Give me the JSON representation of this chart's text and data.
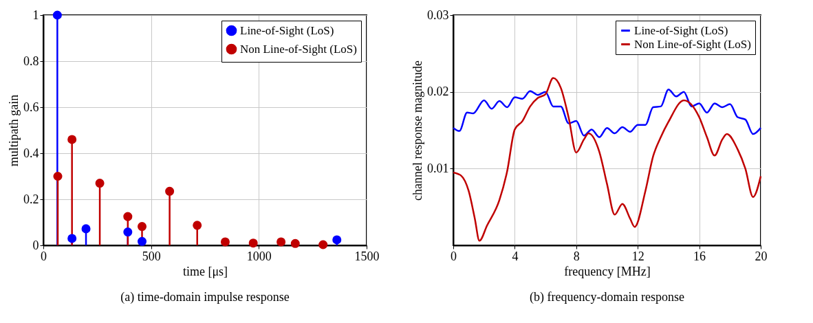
{
  "chart_data": [
    {
      "type": "lollipop",
      "title": "(a)  time-domain impulse response",
      "xlabel": "time [μs]",
      "ylabel": "multipath gain",
      "xlim": [
        0,
        1500
      ],
      "xticks": [
        0,
        500,
        1000,
        1500
      ],
      "ylim": [
        0,
        1
      ],
      "yticks": [
        0,
        0.2,
        0.4,
        0.6,
        0.8,
        1
      ],
      "grid": true,
      "legend": "top right",
      "marker": "circle",
      "series": [
        {
          "name": "Line-of-Sight (LoS)",
          "color": "#0000ff",
          "x": [
            65,
            133,
            198,
            392,
            458,
            1169,
            1362
          ],
          "values": [
            1.0,
            0.03,
            0.072,
            0.058,
            0.017,
            null,
            0.024
          ]
        },
        {
          "name": "Non Line-of-Sight (LoS)",
          "color": "#c00000",
          "x": [
            67,
            133,
            262,
            392,
            458,
            586,
            714,
            844,
            974,
            1103,
            1169,
            1298
          ],
          "values": [
            0.3,
            0.46,
            0.27,
            0.125,
            0.082,
            0.235,
            0.087,
            0.015,
            0.01,
            0.015,
            0.008,
            0.003
          ]
        }
      ]
    },
    {
      "type": "line",
      "title": "(b)  frequency-domain response",
      "xlabel": "frequency [MHz]",
      "ylabel": "channel response magnitude",
      "xlim": [
        0,
        20
      ],
      "xticks": [
        0,
        4,
        8,
        12,
        16,
        20
      ],
      "ylim": [
        0,
        0.03
      ],
      "yticks": [
        0.01,
        0.02,
        0.03
      ],
      "grid": true,
      "legend": "top right",
      "marker": "none",
      "line_style": "solid",
      "series": [
        {
          "name": "Line-of-Sight (LoS)",
          "color": "#0000ff",
          "x": [
            0,
            0.4,
            0.9,
            1.3,
            2.0,
            2.5,
            3.0,
            3.5,
            4.0,
            4.5,
            5.0,
            5.5,
            6.0,
            6.5,
            7.0,
            7.5,
            8.0,
            8.5,
            9.0,
            9.5,
            10.0,
            10.5,
            11.0,
            11.5,
            12.0,
            12.5,
            13.0,
            13.5,
            14.0,
            14.5,
            15.0,
            15.5,
            16.0,
            16.5,
            17.0,
            17.5,
            18.0,
            18.5,
            19.0,
            19.5,
            20.0
          ],
          "values": [
            0.0153,
            0.0149,
            0.0173,
            0.0172,
            0.0189,
            0.0178,
            0.0188,
            0.018,
            0.0193,
            0.0191,
            0.0201,
            0.0196,
            0.02,
            0.0181,
            0.0181,
            0.0159,
            0.0162,
            0.0143,
            0.0151,
            0.0141,
            0.0153,
            0.0146,
            0.0154,
            0.0148,
            0.0157,
            0.0157,
            0.018,
            0.0181,
            0.0203,
            0.0194,
            0.02,
            0.0181,
            0.0185,
            0.0173,
            0.0185,
            0.018,
            0.0184,
            0.0167,
            0.0164,
            0.0145,
            0.0153
          ]
        },
        {
          "name": "Non Line-of-Sight (LoS)",
          "color": "#c00000",
          "x": [
            0,
            0.5,
            1.0,
            1.4,
            1.7,
            2.2,
            3.0,
            3.5,
            4.0,
            4.5,
            5.0,
            5.5,
            6.0,
            6.5,
            7.0,
            7.5,
            8.0,
            8.5,
            8.8,
            9.5,
            10.0,
            10.5,
            11.0,
            11.5,
            11.8,
            12.5,
            13.0,
            13.5,
            14.0,
            15.0,
            16.0,
            16.5,
            17.0,
            17.5,
            17.8,
            18.5,
            19.0,
            19.5,
            20.0
          ],
          "values": [
            0.0095,
            0.0091,
            0.0071,
            0.0035,
            0.0006,
            0.0026,
            0.0059,
            0.0096,
            0.0151,
            0.0162,
            0.0181,
            0.0192,
            0.0197,
            0.0218,
            0.0205,
            0.0167,
            0.0121,
            0.0138,
            0.0146,
            0.0122,
            0.008,
            0.004,
            0.0054,
            0.0035,
            0.0024,
            0.0071,
            0.0116,
            0.0141,
            0.0161,
            0.0189,
            0.0167,
            0.0141,
            0.0117,
            0.0138,
            0.0145,
            0.0125,
            0.01,
            0.0063,
            0.009
          ]
        }
      ]
    }
  ]
}
